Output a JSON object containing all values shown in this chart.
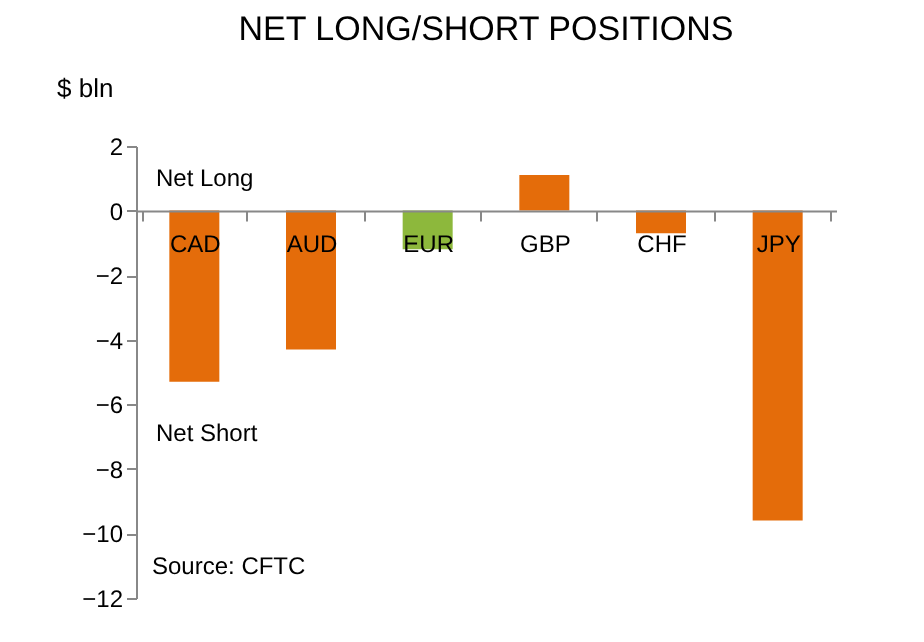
{
  "chart_data": {
    "type": "bar",
    "title": "NET LONG/SHORT POSITIONS",
    "ylabel": "$ bln",
    "categories": [
      "CAD",
      "AUD",
      "EUR",
      "GBP",
      "CHF",
      "JPY"
    ],
    "values": [
      -5.3,
      -4.3,
      -1.2,
      1.1,
      -0.7,
      -9.6
    ],
    "colors": [
      "#e46c0a",
      "#e46c0a",
      "#8db83c",
      "#e46c0a",
      "#e46c0a",
      "#e46c0a"
    ],
    "ylim": [
      -12,
      2
    ],
    "yticks": [
      -12,
      -10,
      -8,
      -6,
      -4,
      -2,
      0,
      2
    ],
    "grid": false,
    "annotations": [
      "Net Long",
      "Net Short",
      "Source: CFTC"
    ]
  }
}
